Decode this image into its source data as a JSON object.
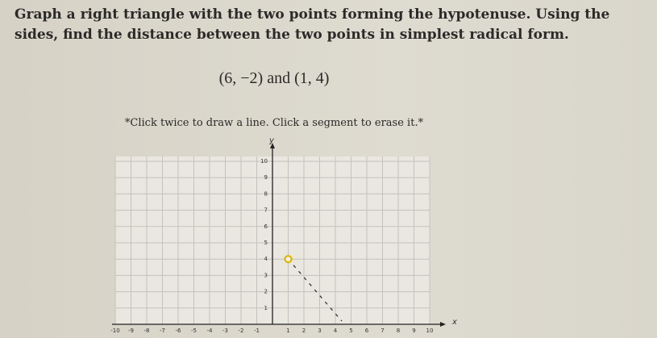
{
  "question": "Graph a right triangle with the two points forming the hypotenuse. Using the sides, find the distance between the two points in simplest radical form.",
  "expression": "(6, −2) and (1, 4)",
  "instruction": "*Click twice to draw a line. Click a segment to erase it.*",
  "graph": {
    "x_label": "x",
    "y_label": "y",
    "xticks": [
      -10,
      -9,
      -8,
      -7,
      -6,
      -5,
      -4,
      -3,
      -2,
      -1,
      1,
      2,
      3,
      4,
      5,
      6,
      7,
      8,
      9,
      10
    ],
    "yticks": [
      1,
      2,
      3,
      4,
      5,
      6,
      7,
      8,
      9,
      10
    ],
    "points": [
      {
        "x": 1,
        "y": 4
      }
    ]
  }
}
